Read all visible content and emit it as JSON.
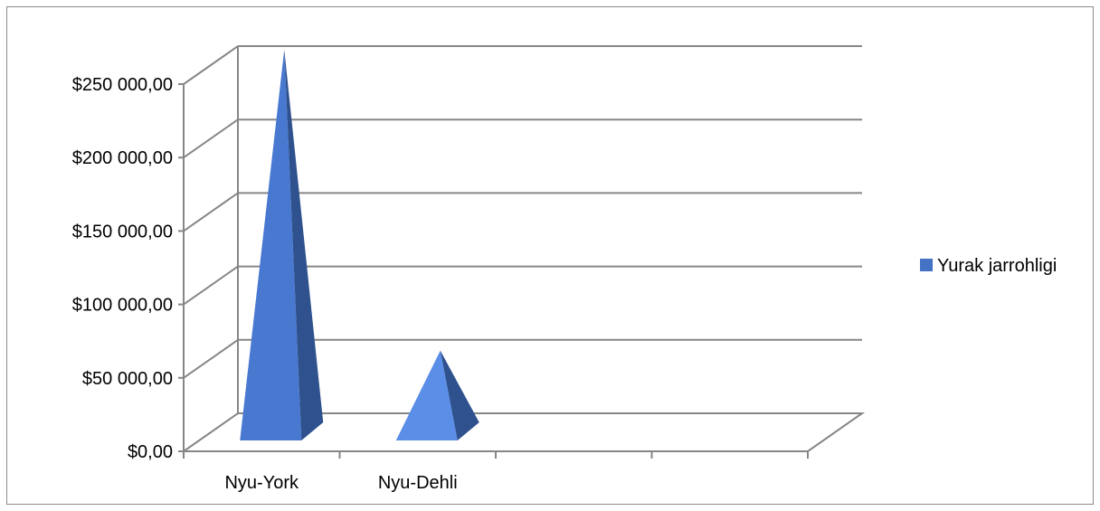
{
  "chart_data": {
    "type": "bar",
    "style": "3d-pyramid",
    "categories": [
      "Nyu-York",
      "Nyu-Dehli"
    ],
    "series": [
      {
        "name": "Yurak jarrohligi",
        "values": [
          260000,
          55000
        ]
      }
    ],
    "ylim": [
      0,
      250000
    ],
    "yticks": [
      "$0,00",
      "$50 000,00",
      "$100 000,00",
      "$150 000,00",
      "$200 000,00",
      "$250 000,00"
    ],
    "grid": true,
    "legend_position": "right",
    "colors": {
      "series": "#4472C4",
      "front": "#4878D0",
      "side": "#2F528F",
      "axis": "#868686"
    }
  }
}
